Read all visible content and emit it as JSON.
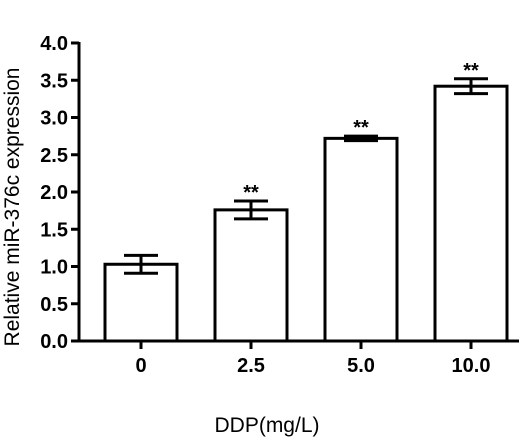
{
  "chart_data": {
    "type": "bar",
    "categories": [
      "0",
      "2.5",
      "5.0",
      "10.0"
    ],
    "values": [
      1.03,
      1.76,
      2.72,
      3.42
    ],
    "errors": [
      0.12,
      0.12,
      0.03,
      0.1
    ],
    "significance": [
      "",
      "**",
      "**",
      "**"
    ],
    "xlabel": "DDP(mg/L)",
    "ylabel": "Relative miR-376c expression",
    "ylim": [
      0,
      4.0
    ],
    "yticks": [
      "0.0",
      "0.5",
      "1.0",
      "1.5",
      "2.0",
      "2.5",
      "3.0",
      "3.5",
      "4.0"
    ],
    "grid": false,
    "bar_fill": "#ffffff",
    "bar_stroke": "#000000"
  }
}
